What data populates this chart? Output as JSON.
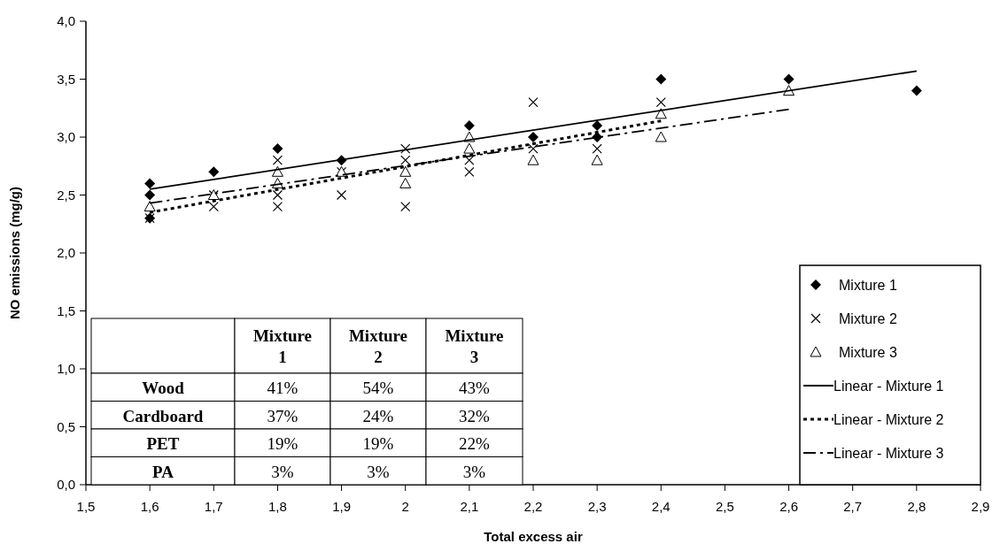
{
  "chart_data": {
    "type": "scatter",
    "xlabel": "Total excess air",
    "ylabel": "NO emissions (mg/g)",
    "xlim": [
      1.5,
      2.9
    ],
    "xticks": [
      {
        "value": 1.5,
        "label": "1,5"
      },
      {
        "value": 1.6,
        "label": "1,6"
      },
      {
        "value": 1.7,
        "label": "1,7"
      },
      {
        "value": 1.8,
        "label": "1,8"
      },
      {
        "value": 1.9,
        "label": "1,9"
      },
      {
        "value": 2,
        "label": "2"
      },
      {
        "value": 2.1,
        "label": "2,1"
      },
      {
        "value": 2.2,
        "label": "2,2"
      },
      {
        "value": 2.3,
        "label": "2,3"
      },
      {
        "value": 2.4,
        "label": "2,4"
      },
      {
        "value": 2.5,
        "label": "2,5"
      },
      {
        "value": 2.6,
        "label": "2,6"
      },
      {
        "value": 2.7,
        "label": "2,7"
      },
      {
        "value": 2.8,
        "label": "2,8"
      },
      {
        "value": 2.9,
        "label": "2,9"
      }
    ],
    "ylim": [
      0,
      4
    ],
    "yticks": [
      {
        "value": 0,
        "label": "0,0"
      },
      {
        "value": 0.5,
        "label": "0,5"
      },
      {
        "value": 1,
        "label": "1,0"
      },
      {
        "value": 1.5,
        "label": "1,5"
      },
      {
        "value": 2,
        "label": "2,0"
      },
      {
        "value": 2.5,
        "label": "2,5"
      },
      {
        "value": 3,
        "label": "3,0"
      },
      {
        "value": 3.5,
        "label": "3,5"
      },
      {
        "value": 4,
        "label": "4,0"
      }
    ],
    "legend": "bottom right",
    "series": [
      {
        "name": "Mixture 1",
        "marker": "diamond",
        "color": "#000000",
        "x": [
          1.6,
          1.6,
          1.6,
          1.7,
          1.8,
          1.9,
          2.1,
          2.2,
          2.3,
          2.3,
          2.4,
          2.6,
          2.8
        ],
        "values": [
          2.6,
          2.5,
          2.3,
          2.7,
          2.9,
          2.8,
          3.1,
          3.0,
          3.1,
          3.0,
          3.5,
          3.5,
          3.4
        ]
      },
      {
        "name": "Mixture 2",
        "marker": "cross",
        "color": "#000000",
        "x": [
          1.6,
          1.7,
          1.7,
          1.8,
          1.8,
          1.8,
          1.9,
          1.9,
          2,
          2,
          2,
          2.1,
          2.1,
          2.2,
          2.2,
          2.3,
          2.4
        ],
        "values": [
          2.3,
          2.5,
          2.4,
          2.8,
          2.5,
          2.4,
          2.7,
          2.5,
          2.9,
          2.8,
          2.4,
          2.8,
          2.7,
          3.3,
          2.9,
          2.9,
          3.3
        ]
      },
      {
        "name": "Mixture 3",
        "marker": "triangle",
        "color": "#000000",
        "x": [
          1.6,
          1.7,
          1.8,
          1.8,
          1.9,
          2,
          2,
          2.1,
          2.1,
          2.2,
          2.3,
          2.4,
          2.4,
          2.6
        ],
        "values": [
          2.4,
          2.5,
          2.7,
          2.6,
          2.7,
          2.7,
          2.6,
          3.0,
          2.9,
          2.8,
          2.8,
          3.2,
          3.0,
          3.4
        ]
      },
      {
        "name": "Linear - Mixture 1",
        "type": "line",
        "line_style": "solid",
        "marker": "none",
        "color": "#000000",
        "x": [
          1.6,
          2.8
        ],
        "values": [
          2.55,
          3.57
        ]
      },
      {
        "name": "Linear - Mixture 2",
        "type": "line",
        "line_style": "dotted",
        "marker": "none",
        "color": "#000000",
        "x": [
          1.6,
          2.4
        ],
        "values": [
          2.35,
          3.14
        ]
      },
      {
        "name": "Linear - Mixture 3",
        "type": "line",
        "line_style": "dashdot",
        "marker": "none",
        "color": "#000000",
        "x": [
          1.6,
          2.6
        ],
        "values": [
          2.43,
          3.24
        ]
      }
    ],
    "annotations": [
      "Mixture 1",
      "Mixture 2",
      "Mixture 3",
      "Wood",
      "41%",
      "54%",
      "43%",
      "Cardboard",
      "37%",
      "24%",
      "32%",
      "PET",
      "19%",
      "19%",
      "22%",
      "PA",
      "3%",
      "3%",
      "3%"
    ]
  }
}
